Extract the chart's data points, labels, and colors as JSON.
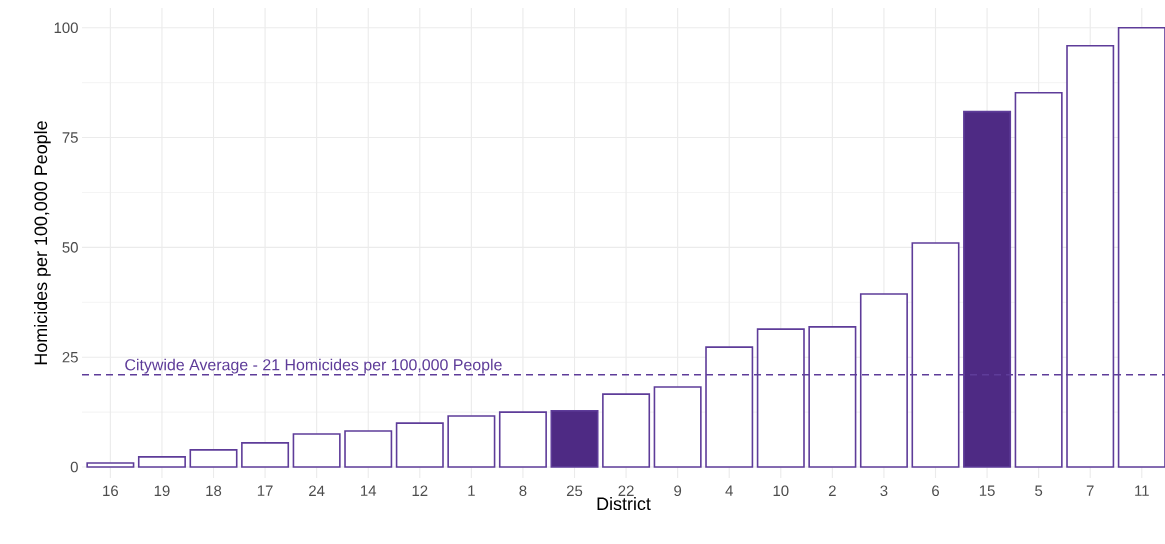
{
  "chart_data": {
    "type": "bar",
    "xlabel": "District",
    "ylabel": "Homicides per 100,000 People",
    "categories": [
      "16",
      "19",
      "18",
      "17",
      "24",
      "14",
      "12",
      "1",
      "8",
      "25",
      "22",
      "9",
      "4",
      "10",
      "2",
      "3",
      "6",
      "15",
      "5",
      "7",
      "11"
    ],
    "values": [
      0.9,
      2.3,
      3.9,
      5.5,
      7.5,
      8.2,
      10.0,
      11.6,
      12.5,
      12.8,
      16.6,
      18.2,
      27.3,
      31.4,
      31.9,
      39.4,
      51,
      80.9,
      85.2,
      95.9,
      100
    ],
    "color": "#5e3c99",
    "colors": [
      "#ffffff",
      "#ffffff",
      "#ffffff",
      "#ffffff",
      "#ffffff",
      "#ffffff",
      "#ffffff",
      "#ffffff",
      "#ffffff",
      "#4e2a84",
      "#ffffff",
      "#ffffff",
      "#ffffff",
      "#ffffff",
      "#ffffff",
      "#ffffff",
      "#ffffff",
      "#4e2a84",
      "#ffffff",
      "#ffffff",
      "#ffffff"
    ],
    "ylim": [
      -2.5,
      104.5
    ],
    "yticks": [
      0,
      25,
      50,
      75,
      100
    ],
    "grid": true,
    "ref_lines": [
      {
        "axis": "y",
        "value": 21,
        "label": "Citywide Average - 21 Homicides per 100,000 People",
        "color": "#5e3c99",
        "line_style": "dashed"
      }
    ]
  }
}
